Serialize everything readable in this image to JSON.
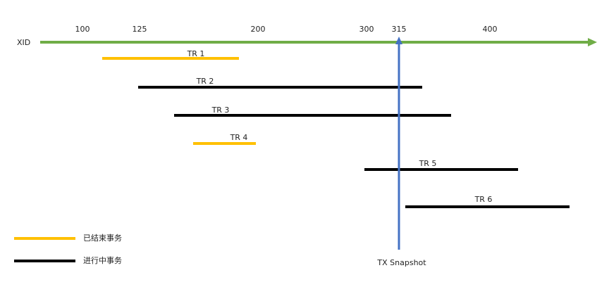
{
  "axis": {
    "label": "XID",
    "ticks": [
      100,
      125,
      200,
      300,
      315,
      400
    ]
  },
  "transactions": [
    {
      "label": "TR 1"
    },
    {
      "label": "TR 2"
    },
    {
      "label": "TR 3"
    },
    {
      "label": "TR 4"
    },
    {
      "label": "TR 5"
    },
    {
      "label": "TR 6"
    }
  ],
  "snapshot": {
    "label": "TX Snapshot"
  },
  "legend": [
    {
      "label": "已结束事务"
    },
    {
      "label": "进行中事务"
    }
  ]
}
